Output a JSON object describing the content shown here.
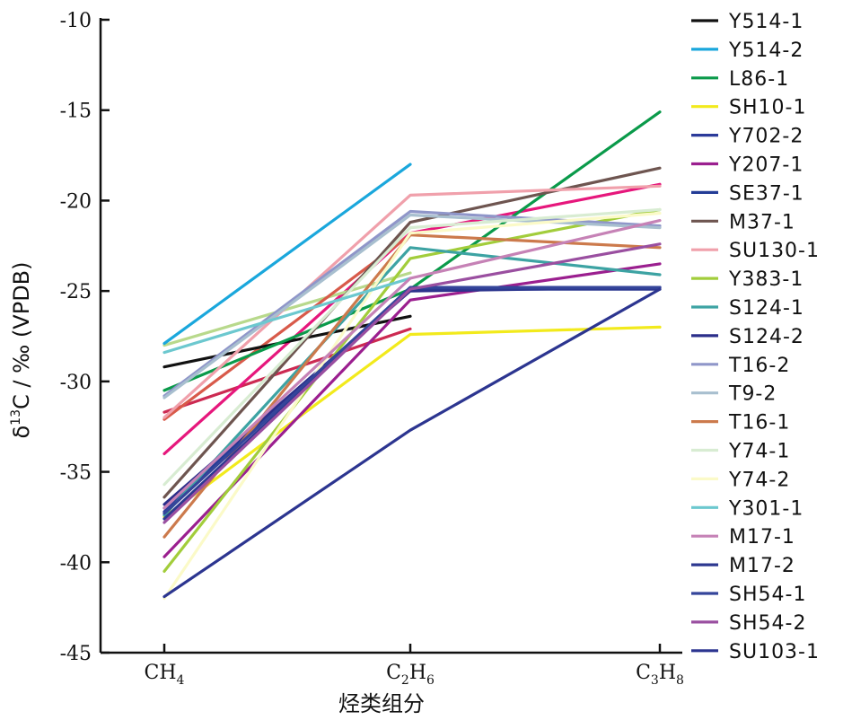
{
  "chart_data": {
    "type": "line",
    "categories": [
      "CH4",
      "C2H6",
      "C3H8"
    ],
    "category_labels": [
      {
        "base": "CH",
        "sub": "4"
      },
      {
        "base": "C",
        "sub": "2",
        "mid": "H",
        "sub2": "6"
      },
      {
        "base": "C",
        "sub": "3",
        "mid": "H",
        "sub2": "8"
      }
    ],
    "xlabel": "烃类组分",
    "ylabel": {
      "prefix": "δ",
      "sup": "13",
      "rest": "C / ‰ (VPDB)"
    },
    "ylim": [
      -45,
      -10
    ],
    "yticks": [
      -10,
      -15,
      -20,
      -25,
      -30,
      -35,
      -40,
      -45
    ],
    "legend_position": "right",
    "series": [
      {
        "name": "Y514-1",
        "color": "#111111",
        "values": [
          -29.2,
          -26.4,
          null
        ]
      },
      {
        "name": "Y514-2",
        "color": "#1aa7dc",
        "values": [
          -27.9,
          -18.0,
          null
        ]
      },
      {
        "name": "L86-1",
        "color": "#0a9a4a",
        "values": [
          -30.5,
          -24.9,
          -15.1
        ]
      },
      {
        "name": "SH10-1",
        "color": "#f2ea1c",
        "values": [
          -37.5,
          -27.4,
          -27.0
        ]
      },
      {
        "name": "Y702-2",
        "color": "#2b3a9a",
        "values": [
          -37.2,
          -24.9,
          -24.8
        ]
      },
      {
        "name": "Y207-1",
        "color": "#9b1f8f",
        "values": [
          -39.7,
          -25.5,
          -23.5
        ]
      },
      {
        "name": "SE37-1",
        "color": "#233c96",
        "values": [
          -37.0,
          -24.9,
          -24.8
        ]
      },
      {
        "name": "M37-1",
        "color": "#6e5550",
        "values": [
          -36.4,
          -21.2,
          -18.2
        ]
      },
      {
        "name": "SU130-1",
        "color": "#f0a0ab",
        "values": [
          -32.0,
          -19.7,
          -19.2
        ]
      },
      {
        "name": "Y383-1",
        "color": "#a2cd3b",
        "values": [
          -40.5,
          -23.2,
          -20.5
        ]
      },
      {
        "name": "S124-1",
        "color": "#3da3a3",
        "values": [
          -37.4,
          -22.6,
          -24.1
        ]
      },
      {
        "name": "S124-2",
        "color": "#2b2e8a",
        "values": [
          -36.8,
          -25.0,
          -24.8
        ]
      },
      {
        "name": "T16-2",
        "color": "#8f96c9",
        "values": [
          -30.8,
          -20.6,
          -21.4
        ]
      },
      {
        "name": "T9-2",
        "color": "#a8bfcf",
        "values": [
          -30.9,
          -20.8,
          -21.5
        ]
      },
      {
        "name": "T16-1",
        "color": "#cc7a4c",
        "values": [
          -38.6,
          -21.9,
          -22.6
        ]
      },
      {
        "name": "Y74-1",
        "color": "#d8ecd2",
        "values": [
          -35.7,
          -21.5,
          -20.5
        ]
      },
      {
        "name": "Y74-2",
        "color": "#fbfac8",
        "values": [
          -42.0,
          -21.8,
          -20.7
        ]
      },
      {
        "name": "Y301-1",
        "color": "#6cc8cf",
        "values": [
          -28.4,
          -24.3,
          null
        ]
      },
      {
        "name": "M17-1",
        "color": "#c682b6",
        "values": [
          -37.0,
          -24.3,
          -21.1
        ]
      },
      {
        "name": "M17-2",
        "color": "#2d3890",
        "values": [
          -37.6,
          -24.9,
          -24.9
        ]
      },
      {
        "name": "SH54-1",
        "color": "#34459a",
        "values": [
          -37.3,
          -24.8,
          -24.8
        ]
      },
      {
        "name": "SH54-2",
        "color": "#9a4fa0",
        "values": [
          -37.8,
          -24.9,
          -22.4
        ]
      },
      {
        "name": "SU103-1",
        "color": "#2c3590",
        "values": [
          -41.9,
          -32.7,
          -24.9
        ]
      }
    ],
    "unlabeled_series": [
      {
        "color": "#cc2a52",
        "values": [
          -31.7,
          -27.1,
          null
        ]
      },
      {
        "color": "#e6177c",
        "values": [
          -34.0,
          -21.8,
          -19.1
        ]
      },
      {
        "color": "#b8d98c",
        "values": [
          -28.0,
          -24.0,
          null
        ]
      },
      {
        "color": "#d85a4a",
        "values": [
          -32.1,
          -21.9,
          null
        ]
      }
    ]
  }
}
